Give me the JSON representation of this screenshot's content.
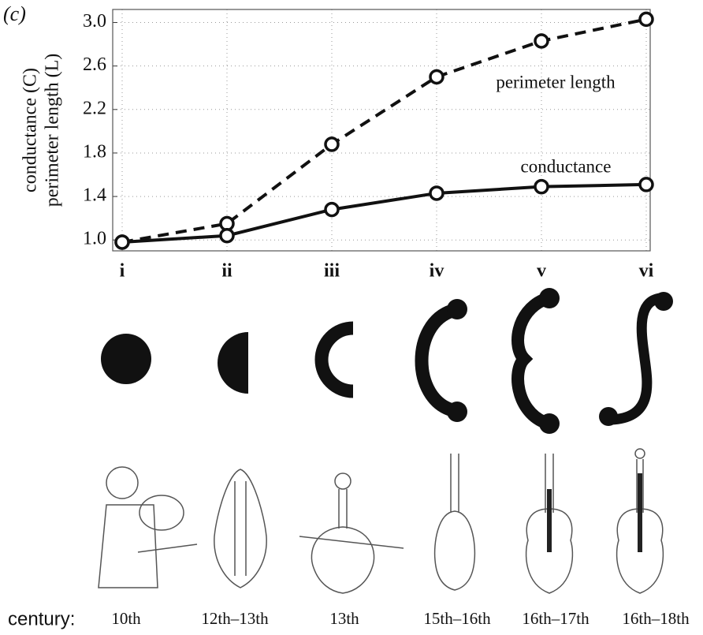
{
  "chart_data": {
    "type": "line",
    "panel_label": "(c)",
    "y_label": [
      "conductance (C)",
      "perimeter length (L)"
    ],
    "categories": [
      "i",
      "ii",
      "iii",
      "iv",
      "v",
      "vi"
    ],
    "series": [
      {
        "name": "perimeter length",
        "color": "#111111",
        "line_style": "dashed",
        "values": [
          0.98,
          1.15,
          1.88,
          2.5,
          2.83,
          3.03
        ]
      },
      {
        "name": "conductance",
        "color": "#111111",
        "line_style": "solid",
        "values": [
          0.98,
          1.04,
          1.28,
          1.43,
          1.49,
          1.51
        ]
      }
    ],
    "ylim": [
      0.9,
      3.12
    ],
    "yticks": [
      {
        "value": 1,
        "label": "1.0"
      },
      1.4,
      1.8,
      2.2,
      2.6,
      {
        "value": 3,
        "label": "3.0"
      }
    ],
    "grid": true
  },
  "illustration": {
    "century_label": "century:",
    "centuries": [
      "10th",
      "12th–13th",
      "13th",
      "15th–16th",
      "16th–17th",
      "16th–18th"
    ]
  }
}
